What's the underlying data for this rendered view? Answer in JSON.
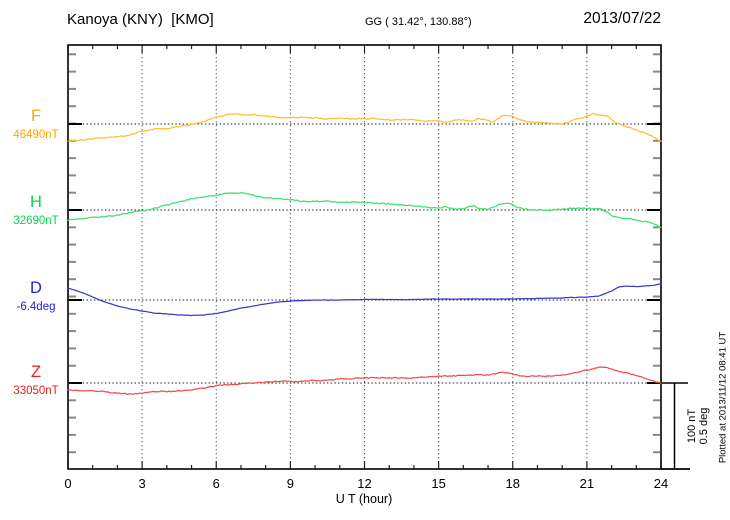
{
  "header": {
    "title": "Kanoya (KNY)  [KMO]",
    "coords": "GG ( 31.42°, 130.88°)",
    "date": "2013/07/22"
  },
  "chart_data": {
    "type": "line",
    "title": "Kanoya (KNY) [KMO] magnetogram 2013/07/22",
    "xlabel": "U T (hour)",
    "x_range": [
      0,
      24
    ],
    "xticks": [
      0,
      3,
      6,
      9,
      12,
      15,
      18,
      21,
      24
    ],
    "grid": "dotted vertical lines at 3-hour intervals, dotted horizontal baseline per channel",
    "scale_bar": {
      "nT_label": "100 nT",
      "deg_label": "0.5 deg",
      "nT": 100,
      "deg": 0.5
    },
    "plotted_at": "Plotted at 2013/11/12 08:41 UT",
    "series": [
      {
        "name": "F",
        "label": "F",
        "baseline_label": "46490nT",
        "baseline_value": 46490,
        "unit": "nT",
        "label_color": "#ffa500",
        "trace_color": "#ffbe2e",
        "points": [
          [
            0,
            -20
          ],
          [
            0.5,
            -19
          ],
          [
            1,
            -17
          ],
          [
            1.5,
            -16
          ],
          [
            2,
            -15
          ],
          [
            2.5,
            -13
          ],
          [
            3,
            -8
          ],
          [
            3.5,
            -6
          ],
          [
            4,
            -5
          ],
          [
            4.5,
            -3
          ],
          [
            5,
            -1
          ],
          [
            5.5,
            3
          ],
          [
            6,
            8
          ],
          [
            6.3,
            10
          ],
          [
            6.8,
            12
          ],
          [
            7.2,
            10
          ],
          [
            7.5,
            11
          ],
          [
            8,
            9
          ],
          [
            8.5,
            8
          ],
          [
            9,
            7
          ],
          [
            9.5,
            8
          ],
          [
            10,
            7
          ],
          [
            10.5,
            6
          ],
          [
            11,
            7
          ],
          [
            11.5,
            6
          ],
          [
            12,
            6
          ],
          [
            12.5,
            6
          ],
          [
            13,
            5
          ],
          [
            13.5,
            5
          ],
          [
            14,
            5
          ],
          [
            14.5,
            3
          ],
          [
            15,
            4
          ],
          [
            15.3,
            2
          ],
          [
            15.6,
            4
          ],
          [
            16,
            5
          ],
          [
            16.3,
            3
          ],
          [
            16.6,
            6
          ],
          [
            16.9,
            5
          ],
          [
            17.2,
            2
          ],
          [
            17.6,
            10
          ],
          [
            17.9,
            10
          ],
          [
            18.2,
            6
          ],
          [
            18.5,
            3
          ],
          [
            19,
            2
          ],
          [
            19.5,
            1
          ],
          [
            20,
            0
          ],
          [
            20.5,
            5
          ],
          [
            21,
            9
          ],
          [
            21.3,
            12
          ],
          [
            21.6,
            10
          ],
          [
            21.9,
            9
          ],
          [
            22.1,
            2
          ],
          [
            22.5,
            -2
          ],
          [
            23,
            -7
          ],
          [
            23.5,
            -12
          ],
          [
            24,
            -20
          ]
        ]
      },
      {
        "name": "H",
        "label": "H",
        "baseline_label": "32690nT",
        "baseline_value": 32690,
        "unit": "nT",
        "label_color": "#00d94f",
        "trace_color": "#3ce06e",
        "points": [
          [
            0,
            -12
          ],
          [
            0.5,
            -10
          ],
          [
            1,
            -9
          ],
          [
            1.5,
            -8
          ],
          [
            2,
            -6
          ],
          [
            2.5,
            -3
          ],
          [
            3,
            -1
          ],
          [
            3.5,
            2
          ],
          [
            4,
            6
          ],
          [
            4.5,
            9
          ],
          [
            5,
            13
          ],
          [
            5.5,
            15
          ],
          [
            6,
            17
          ],
          [
            6.5,
            20
          ],
          [
            7,
            20
          ],
          [
            7.3,
            19
          ],
          [
            7.6,
            16
          ],
          [
            8,
            14
          ],
          [
            8.5,
            13
          ],
          [
            9,
            12
          ],
          [
            9.5,
            10
          ],
          [
            10,
            10
          ],
          [
            10.5,
            10
          ],
          [
            11,
            9
          ],
          [
            11.5,
            9
          ],
          [
            12,
            9
          ],
          [
            12.5,
            8
          ],
          [
            13,
            7
          ],
          [
            13.5,
            6
          ],
          [
            14,
            5
          ],
          [
            14.5,
            3
          ],
          [
            15,
            2
          ],
          [
            15.3,
            4
          ],
          [
            15.6,
            1
          ],
          [
            16,
            2
          ],
          [
            16.4,
            5
          ],
          [
            16.6,
            2
          ],
          [
            17,
            1
          ],
          [
            17.5,
            7
          ],
          [
            17.8,
            8
          ],
          [
            18.2,
            3
          ],
          [
            18.5,
            1
          ],
          [
            19,
            0
          ],
          [
            19.5,
            0
          ],
          [
            20,
            1
          ],
          [
            20.5,
            2
          ],
          [
            21,
            2
          ],
          [
            21.5,
            2
          ],
          [
            21.8,
            -2
          ],
          [
            22,
            -7
          ],
          [
            22.3,
            -9
          ],
          [
            22.7,
            -10
          ],
          [
            23,
            -12
          ],
          [
            23.5,
            -14
          ],
          [
            24,
            -20
          ]
        ]
      },
      {
        "name": "D",
        "label": "D",
        "baseline_label": "-6.4deg",
        "baseline_value": -6.4,
        "unit": "deg",
        "label_color": "#2222e0",
        "trace_color": "#3a3acc",
        "points": [
          [
            0,
            0.07
          ],
          [
            0.5,
            0.047
          ],
          [
            1,
            0.017
          ],
          [
            1.5,
            -0.012
          ],
          [
            2,
            -0.035
          ],
          [
            2.5,
            -0.052
          ],
          [
            3,
            -0.064
          ],
          [
            3.5,
            -0.076
          ],
          [
            4,
            -0.081
          ],
          [
            4.5,
            -0.087
          ],
          [
            5,
            -0.09
          ],
          [
            5.5,
            -0.087
          ],
          [
            6,
            -0.078
          ],
          [
            6.5,
            -0.064
          ],
          [
            7,
            -0.047
          ],
          [
            7.5,
            -0.035
          ],
          [
            8,
            -0.023
          ],
          [
            8.5,
            -0.012
          ],
          [
            9,
            -0.006
          ],
          [
            9.5,
            -0.003
          ],
          [
            10,
            0
          ],
          [
            11,
            0
          ],
          [
            12,
            0.003
          ],
          [
            13,
            0.003
          ],
          [
            14,
            0.003
          ],
          [
            15,
            0.006
          ],
          [
            16,
            0.006
          ],
          [
            17,
            0.006
          ],
          [
            18,
            0.006
          ],
          [
            19,
            0.009
          ],
          [
            20,
            0.012
          ],
          [
            20.5,
            0.015
          ],
          [
            21,
            0.017
          ],
          [
            21.5,
            0.023
          ],
          [
            22,
            0.052
          ],
          [
            22.3,
            0.076
          ],
          [
            22.6,
            0.081
          ],
          [
            23,
            0.078
          ],
          [
            23.3,
            0.081
          ],
          [
            23.6,
            0.084
          ],
          [
            24,
            0.093
          ]
        ]
      },
      {
        "name": "Z",
        "label": "Z",
        "baseline_label": "33050nT",
        "baseline_value": 33050,
        "unit": "nT",
        "label_color": "#ee1c1c",
        "trace_color": "#f34c4c",
        "points": [
          [
            0,
            -8
          ],
          [
            0.5,
            -9
          ],
          [
            1,
            -9
          ],
          [
            1.5,
            -10
          ],
          [
            2,
            -12
          ],
          [
            2.5,
            -13
          ],
          [
            3,
            -12
          ],
          [
            3.5,
            -10
          ],
          [
            4,
            -10
          ],
          [
            4.5,
            -9
          ],
          [
            5,
            -8
          ],
          [
            5.5,
            -6
          ],
          [
            6,
            -3
          ],
          [
            6.5,
            -2
          ],
          [
            7,
            -1
          ],
          [
            7.5,
            0
          ],
          [
            8,
            1
          ],
          [
            8.5,
            2
          ],
          [
            9,
            2
          ],
          [
            9.5,
            2
          ],
          [
            10,
            3
          ],
          [
            10.5,
            3
          ],
          [
            11,
            5
          ],
          [
            11.5,
            5
          ],
          [
            12,
            6
          ],
          [
            12.5,
            6
          ],
          [
            13,
            6
          ],
          [
            13.5,
            6
          ],
          [
            14,
            6
          ],
          [
            14.5,
            7
          ],
          [
            15,
            8
          ],
          [
            15.5,
            8
          ],
          [
            16,
            9
          ],
          [
            16.3,
            9
          ],
          [
            16.6,
            10
          ],
          [
            17,
            9
          ],
          [
            17.5,
            12
          ],
          [
            17.8,
            12
          ],
          [
            18.2,
            9
          ],
          [
            18.5,
            8
          ],
          [
            19,
            8
          ],
          [
            19.5,
            8
          ],
          [
            20,
            9
          ],
          [
            20.5,
            12
          ],
          [
            21,
            15
          ],
          [
            21.3,
            17
          ],
          [
            21.6,
            19
          ],
          [
            21.9,
            17
          ],
          [
            22.2,
            14
          ],
          [
            22.5,
            12
          ],
          [
            23,
            9
          ],
          [
            23.3,
            6
          ],
          [
            23.6,
            3
          ],
          [
            24,
            0
          ]
        ]
      }
    ]
  }
}
